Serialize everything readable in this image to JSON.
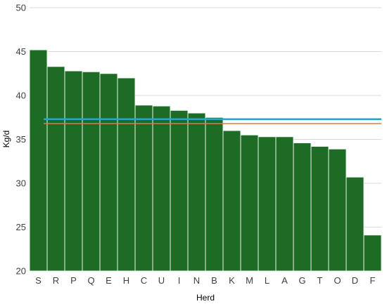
{
  "chart_data": {
    "type": "bar",
    "title": "",
    "xlabel": "Herd",
    "ylabel": "Kg/d",
    "ylim": [
      20,
      50
    ],
    "yticks": [
      20,
      25,
      30,
      35,
      40,
      45,
      50
    ],
    "grid": true,
    "categories": [
      "S",
      "R",
      "P",
      "Q",
      "E",
      "H",
      "C",
      "U",
      "I",
      "N",
      "B",
      "K",
      "M",
      "L",
      "A",
      "G",
      "T",
      "O",
      "D",
      "F"
    ],
    "values": [
      45.2,
      43.3,
      42.8,
      42.7,
      42.5,
      42.0,
      38.9,
      38.8,
      38.3,
      38.0,
      37.5,
      36.0,
      35.5,
      35.3,
      35.3,
      34.6,
      34.2,
      33.9,
      30.7,
      24.1
    ],
    "reference_lines": [
      {
        "value": 37.3,
        "color": "#2aa6c4"
      },
      {
        "value": 36.8,
        "color": "#e07a3a"
      }
    ],
    "colors": {
      "bar": "#1e6b25",
      "bar_edge": "#e9f5ea",
      "grid": "#d9d9d9"
    }
  }
}
